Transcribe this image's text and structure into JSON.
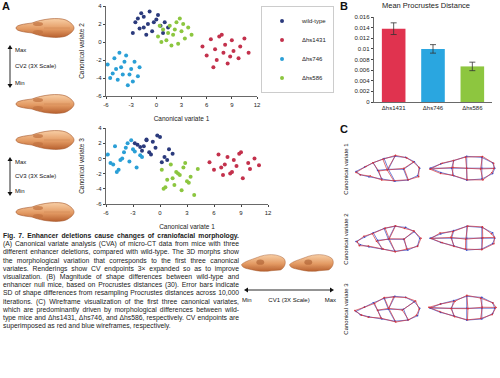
{
  "chart_data": [
    {
      "type": "scatter",
      "x_label": "Canonical variate 1",
      "y_label": "Canonical variate 2",
      "xlim": [
        -6,
        12
      ],
      "xticks": [
        -6,
        -3,
        0,
        3,
        6,
        9,
        12
      ],
      "ylim": [
        -6,
        4
      ],
      "yticks": [
        -6,
        -4,
        -2,
        0,
        2,
        4
      ],
      "grid": false,
      "legend": "right",
      "marker": "circle",
      "series": [
        {
          "name": "wild-type",
          "color": "#2b3a7c",
          "x": [
            -2.5,
            -2,
            -1.5,
            -1,
            -0.5,
            0,
            0.5,
            -1.8,
            -0.8,
            0.2,
            1,
            -2.8,
            -1.2,
            0.8,
            -0.3,
            -2.2,
            1.4,
            -1.5
          ],
          "y": [
            2.2,
            1.5,
            2.8,
            2,
            1.2,
            2.5,
            1.8,
            3.2,
            3.4,
            3,
            2.2,
            1,
            0.8,
            1,
            2.2,
            2.6,
            1.6,
            1.6
          ]
        },
        {
          "name": "Δhs1431",
          "color": "#c3314c",
          "x": [
            5.5,
            6,
            6.5,
            7,
            7.2,
            7.5,
            8,
            8.2,
            8.5,
            9,
            9.2,
            9.8,
            10,
            10.5,
            6.8,
            8.8,
            7.8,
            11
          ],
          "y": [
            -0.5,
            -1.5,
            0.3,
            -0.8,
            -2,
            0.6,
            -1.2,
            -0.3,
            -2.4,
            0.2,
            -1,
            -1.8,
            -0.5,
            0.4,
            -2.8,
            -1.6,
            0.8,
            -1.2
          ]
        },
        {
          "name": "Δhs746",
          "color": "#2a9fd6",
          "x": [
            -5.8,
            -5.2,
            -5,
            -4.6,
            -4.2,
            -4,
            -3.6,
            -3.4,
            -3,
            -2.6,
            -2.2,
            -4.8,
            -3.8,
            -5.5,
            -2.8,
            -4.4,
            -3.2,
            -2
          ],
          "y": [
            -2.5,
            -3.5,
            -1.8,
            -4.2,
            -2.8,
            -3.6,
            -1.5,
            -4.8,
            -3,
            -2.2,
            -3.8,
            -3,
            -2.2,
            -4,
            -4.4,
            -1.2,
            -3.6,
            -2.8
          ]
        },
        {
          "name": "Δhs586",
          "color": "#8cc63f",
          "x": [
            0.2,
            0.8,
            1.2,
            1.6,
            2,
            2.4,
            2.6,
            3,
            3.4,
            3.8,
            1.8,
            0.6,
            2.8,
            1.4,
            3.2,
            4.2,
            2.2,
            0.4
          ],
          "y": [
            0.6,
            1.4,
            0.2,
            1.8,
            0.8,
            2.2,
            -0.2,
            1.2,
            0.4,
            1.6,
            -0.4,
            0,
            2.6,
            1,
            2,
            0.8,
            1.4,
            1.8
          ]
        }
      ]
    },
    {
      "type": "scatter",
      "x_label": "Canonical variate 1",
      "y_label": "Canonical variate 3",
      "xlim": [
        -6,
        12
      ],
      "xticks": [
        -6,
        -3,
        0,
        3,
        6,
        9,
        12
      ],
      "ylim": [
        -6,
        4
      ],
      "yticks": [
        -6,
        -4,
        -2,
        0,
        2,
        4
      ],
      "grid": false,
      "marker": "circle",
      "series": [
        {
          "color": "#2b3a7c",
          "x": [
            -2.5,
            -2,
            -1.5,
            -1,
            -0.5,
            0,
            0.5,
            -1.8,
            -0.8,
            0.2,
            1,
            -2.8,
            -1.2,
            0.8,
            -0.3,
            -2.2,
            1.4,
            -1.5
          ],
          "y": [
            1.8,
            1,
            2.5,
            0.5,
            1.4,
            2.8,
            0.2,
            1.6,
            2.2,
            -0.5,
            1.2,
            2,
            0.8,
            -0.2,
            3,
            1.5,
            0.6,
            2.4
          ]
        },
        {
          "color": "#c3314c",
          "x": [
            5.5,
            6,
            6.5,
            7,
            7.2,
            7.5,
            8,
            8.2,
            8.5,
            9,
            9.2,
            9.8,
            10,
            10.5,
            6.8,
            8.8,
            7.8,
            11
          ],
          "y": [
            -0.5,
            -1.5,
            0.5,
            -2.2,
            -0.8,
            0.2,
            -1.8,
            -0.2,
            -1,
            0.8,
            -2.6,
            -0.6,
            -1.4,
            0,
            -1.2,
            0.6,
            -2,
            -0.9
          ]
        },
        {
          "color": "#2a9fd6",
          "x": [
            -5.8,
            -5.2,
            -5,
            -4.6,
            -4.2,
            -4,
            -3.6,
            -3.4,
            -3,
            -2.6,
            -2.2,
            -4.8,
            -3.8,
            -5.5,
            -2.8,
            -4.4,
            -3.2,
            -2
          ],
          "y": [
            0.5,
            -0.8,
            1.6,
            -1.5,
            0,
            0.8,
            2,
            -0.4,
            1.2,
            -1.2,
            0.4,
            -1.8,
            1.4,
            -0.6,
            0.9,
            -0.2,
            2.4,
            0.2
          ]
        },
        {
          "color": "#8cc63f",
          "x": [
            0.2,
            0.8,
            1.2,
            1.6,
            2,
            2.4,
            2.6,
            3,
            3.4,
            3.8,
            1.8,
            0.6,
            2.8,
            1.4,
            3.2,
            4.2,
            2.2,
            0.4
          ],
          "y": [
            -1.5,
            -2.8,
            -0.8,
            -3.5,
            -2,
            -4.2,
            -1.2,
            -3,
            -2.4,
            -4.8,
            -1.8,
            -3.8,
            -0.6,
            -2.6,
            -3.2,
            -1.4,
            -2.2,
            -4
          ]
        }
      ]
    },
    {
      "type": "bar",
      "title": "Mean Procrustes Distance",
      "categories": [
        "Δhs1431",
        "Δhs746",
        "Δhs586"
      ],
      "values": [
        0.0138,
        0.01,
        0.0067
      ],
      "errors": [
        0.0011,
        0.0008,
        0.0008
      ],
      "colors": [
        "#e0334f",
        "#2aa6e0",
        "#8dc63f"
      ],
      "ylim": [
        0,
        0.016
      ],
      "yticks": [
        0,
        0.002,
        0.004,
        0.006,
        0.008,
        0.01,
        0.012,
        0.014,
        0.016
      ],
      "grid": false
    }
  ],
  "figure": {
    "panel_labels": [
      "A",
      "B",
      "C"
    ],
    "morphs": [
      {
        "label": "CV2 (3X Scale)",
        "max": "Max",
        "min": "Min"
      },
      {
        "label": "CV3 (3X Scale)",
        "max": "Max",
        "min": "Min"
      },
      {
        "label": "CV1 (3X Scale)",
        "max": "Max",
        "min": "Min"
      }
    ],
    "wireframe_labels": [
      "Canonical variate 1",
      "Canonical variate 2",
      "Canonical variate 3"
    ],
    "caption": {
      "title": "Fig. 7. Enhancer deletions cause changes of craniofacial morphology.",
      "text": "(A) Canonical variate analysis (CVA) of micro-CT data from mice with three different enhancer deletions, compared with wild-type. The 3D morphs show the morphological variation that corresponds to the first three canonical variates. Renderings show CV endpoints 3× expanded so as to improve visualization. (B) Magnitude of shape differences between wild-type and enhancer null mice, based on Procrustes distances (30). Error bars indicate SD of shape differences from resampling Procrustes distances across 10,000 iterations. (C) Wireframe visualization of the first three canonical variates, which are predominantly driven by morphological differences between wild-type mice and Δhs1431, Δhs746, and Δhs586, respectively. CV endpoints are superimposed as red and blue wireframes, respectively."
    }
  }
}
